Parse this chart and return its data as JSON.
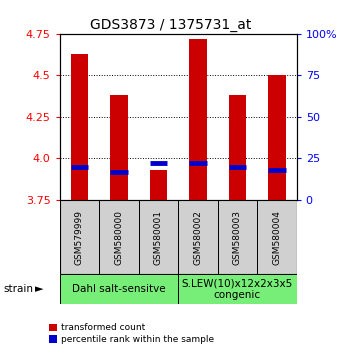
{
  "title": "GDS3873 / 1375731_at",
  "samples": [
    "GSM579999",
    "GSM580000",
    "GSM580001",
    "GSM580002",
    "GSM580003",
    "GSM580004"
  ],
  "transformed_counts": [
    4.63,
    4.38,
    3.93,
    4.72,
    4.38,
    4.5
  ],
  "percentile_ranks": [
    20,
    17,
    22,
    22,
    20,
    18
  ],
  "ymin": 3.75,
  "ymax": 4.75,
  "yticks": [
    3.75,
    4.0,
    4.25,
    4.5,
    4.75
  ],
  "right_yticks": [
    0,
    25,
    50,
    75,
    100
  ],
  "bar_color": "#cc0000",
  "blue_color": "#0000cc",
  "bar_width": 0.45,
  "group1_label": "Dahl salt-sensitve",
  "group2_label": "S.LEW(10)x12x2x3x5\ncongenic",
  "group_color": "#77ee77",
  "gray_color": "#d0d0d0",
  "strain_label": "strain",
  "legend_red": "transformed count",
  "legend_blue": "percentile rank within the sample",
  "title_fontsize": 10,
  "tick_fontsize": 8,
  "sample_fontsize": 6.5,
  "group_fontsize": 7.5,
  "legend_fontsize": 6.5
}
